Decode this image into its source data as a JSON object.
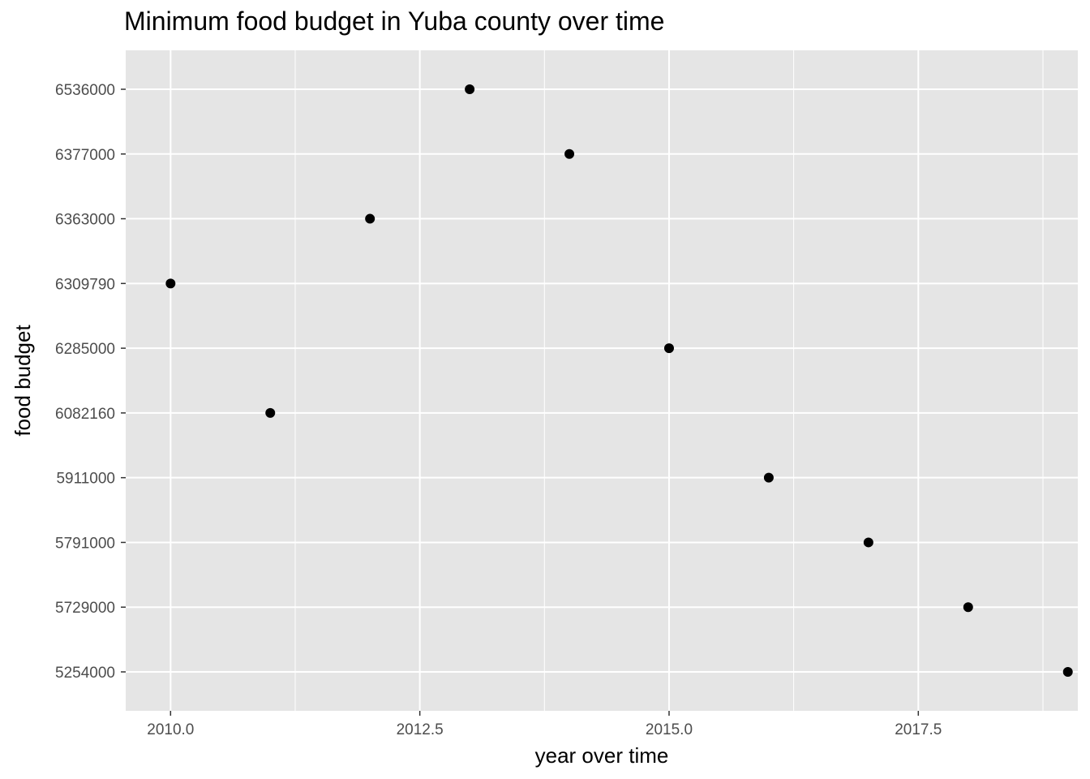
{
  "chart_data": {
    "type": "scatter",
    "title": "Minimum food budget in Yuba county over time",
    "xlabel": "year over time",
    "ylabel": "food budget",
    "y_axis_kind": "categorical",
    "y_categories": [
      "5254000",
      "5729000",
      "5791000",
      "5911000",
      "6082160",
      "6285000",
      "6309790",
      "6363000",
      "6377000",
      "6536000"
    ],
    "x_ticks": [
      "2010.0",
      "2012.5",
      "2015.0",
      "2017.5"
    ],
    "xlim": [
      2009.55,
      2019.1
    ],
    "grid": true,
    "points": [
      {
        "x": 2010,
        "y": "6309790"
      },
      {
        "x": 2011,
        "y": "6082160"
      },
      {
        "x": 2012,
        "y": "6363000"
      },
      {
        "x": 2013,
        "y": "6536000"
      },
      {
        "x": 2014,
        "y": "6377000"
      },
      {
        "x": 2015,
        "y": "6285000"
      },
      {
        "x": 2016,
        "y": "5911000"
      },
      {
        "x": 2017,
        "y": "5791000"
      },
      {
        "x": 2018,
        "y": "5729000"
      },
      {
        "x": 2019,
        "y": "5254000"
      }
    ],
    "colors": {
      "panel": "#e5e5e5",
      "grid": "#ffffff",
      "point": "#000000",
      "tick_text": "#4d4d4d"
    }
  }
}
